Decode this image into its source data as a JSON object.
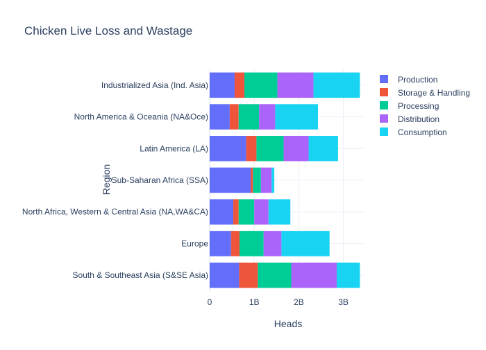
{
  "chart_data": {
    "type": "bar",
    "orientation": "horizontal",
    "barmode": "stack",
    "title": "Chicken Live Loss and Wastage",
    "xlabel": "Heads",
    "ylabel": "Region",
    "xlim": [
      0,
      3.4
    ],
    "x_ticks": [
      {
        "value": 0,
        "label": "0"
      },
      {
        "value": 1,
        "label": "1B"
      },
      {
        "value": 2,
        "label": "2B"
      },
      {
        "value": 3,
        "label": "3B"
      }
    ],
    "value_unit": "billions of heads",
    "grid": true,
    "legend_position": "right",
    "categories": [
      "South & Southeast Asia (S&SE Asia)",
      "Europe",
      "North Africa, Western & Central Asia (NA,WA&CA)",
      "Sub-Saharan Africa (SSA)",
      "Latin America (LA)",
      "North America & Oceania (NA&Oce)",
      "Industrialized Asia (Ind. Asia)"
    ],
    "series": [
      {
        "name": "Production",
        "color": "#636efa",
        "values": [
          0.66,
          0.48,
          0.53,
          0.92,
          0.82,
          0.45,
          0.56
        ]
      },
      {
        "name": "Storage & Handling",
        "color": "#ef553b",
        "values": [
          0.42,
          0.19,
          0.12,
          0.05,
          0.23,
          0.2,
          0.22
        ]
      },
      {
        "name": "Processing",
        "color": "#00cc96",
        "values": [
          0.75,
          0.54,
          0.35,
          0.18,
          0.61,
          0.46,
          0.74
        ]
      },
      {
        "name": "Distribution",
        "color": "#ab63fa",
        "values": [
          1.02,
          0.4,
          0.32,
          0.24,
          0.56,
          0.36,
          0.81
        ]
      },
      {
        "name": "Consumption",
        "color": "#19d3f3",
        "values": [
          0.52,
          1.08,
          0.49,
          0.06,
          0.66,
          0.96,
          1.04
        ]
      }
    ]
  }
}
